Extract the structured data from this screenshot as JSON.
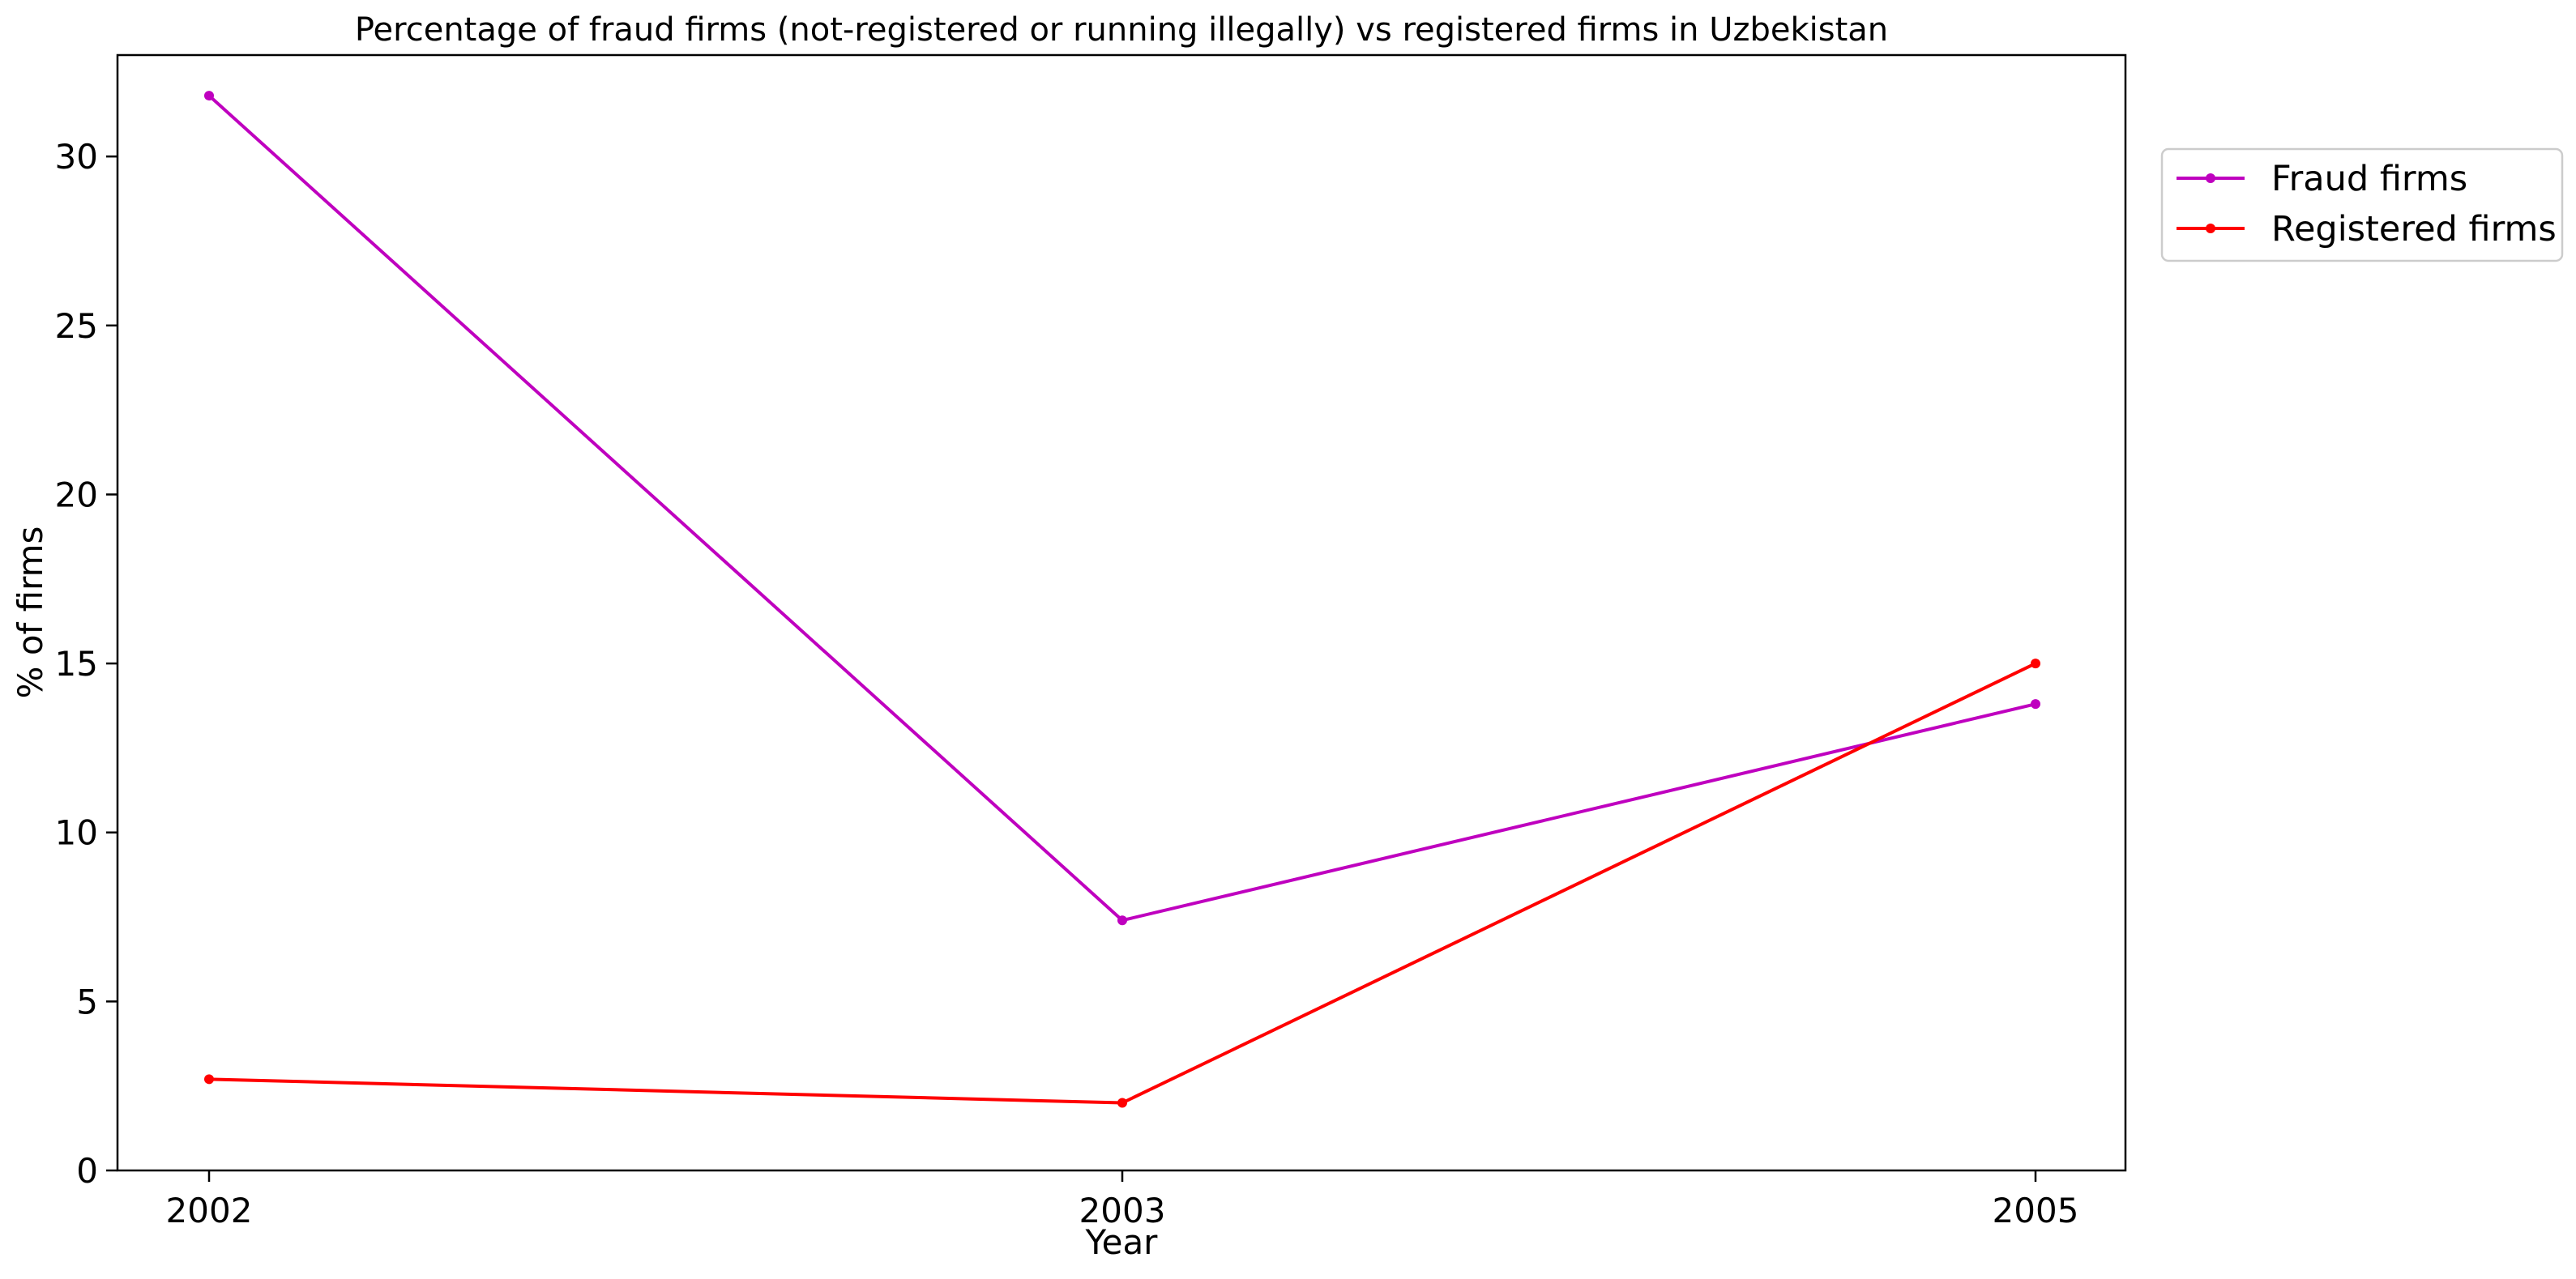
{
  "chart_data": {
    "type": "line",
    "title": "Percentage of fraud firms (not-registered or running illegally) vs registered firms in Uzbekistan",
    "xlabel": "Year",
    "ylabel": "% of firms",
    "categories": [
      "2002",
      "2003",
      "2005"
    ],
    "ylim": [
      0,
      33
    ],
    "yticks": [
      0,
      5,
      10,
      15,
      20,
      25,
      30
    ],
    "grid": false,
    "legend_position": "upper right, outside plot area",
    "series": [
      {
        "name": "Fraud firms",
        "color": "#bf00bf",
        "marker": "dot",
        "values": [
          31.8,
          7.4,
          13.8
        ]
      },
      {
        "name": "Registered firms",
        "color": "#ff0000",
        "marker": "dot",
        "values": [
          2.7,
          2.0,
          15.0
        ]
      }
    ]
  }
}
